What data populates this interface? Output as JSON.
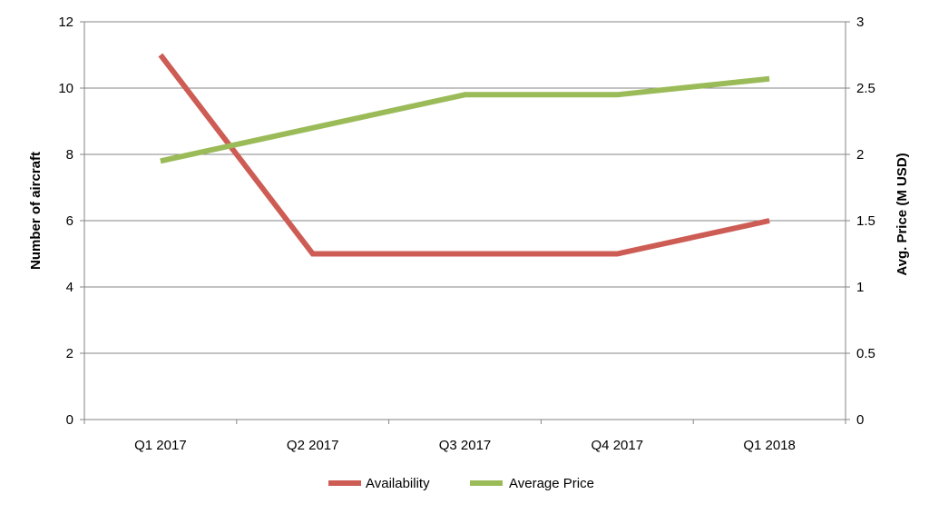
{
  "chart_data": {
    "type": "line",
    "categories": [
      "Q1 2017",
      "Q2 2017",
      "Q3 2017",
      "Q4 2017",
      "Q1 2018"
    ],
    "series": [
      {
        "name": "Availability",
        "axis": "left",
        "color": "#cd5c55",
        "values": [
          11,
          5,
          5,
          5,
          6
        ]
      },
      {
        "name": "Average Price",
        "axis": "right",
        "color": "#9bbb59",
        "values": [
          1.95,
          2.2,
          2.45,
          2.45,
          2.57
        ]
      }
    ],
    "y_left": {
      "label": "Number of aircraft",
      "range": [
        0,
        12
      ],
      "ticks": [
        "0",
        "2",
        "4",
        "6",
        "8",
        "10",
        "12"
      ]
    },
    "y_right": {
      "label": "Avg. Price (M USD)",
      "range": [
        0,
        3
      ],
      "ticks": [
        "0",
        "0.5",
        "1",
        "1.5",
        "2",
        "2.5",
        "3"
      ]
    },
    "grid": true,
    "legend_position": "bottom-center",
    "colors": {
      "gridline": "#868686",
      "axis": "#868686"
    }
  }
}
